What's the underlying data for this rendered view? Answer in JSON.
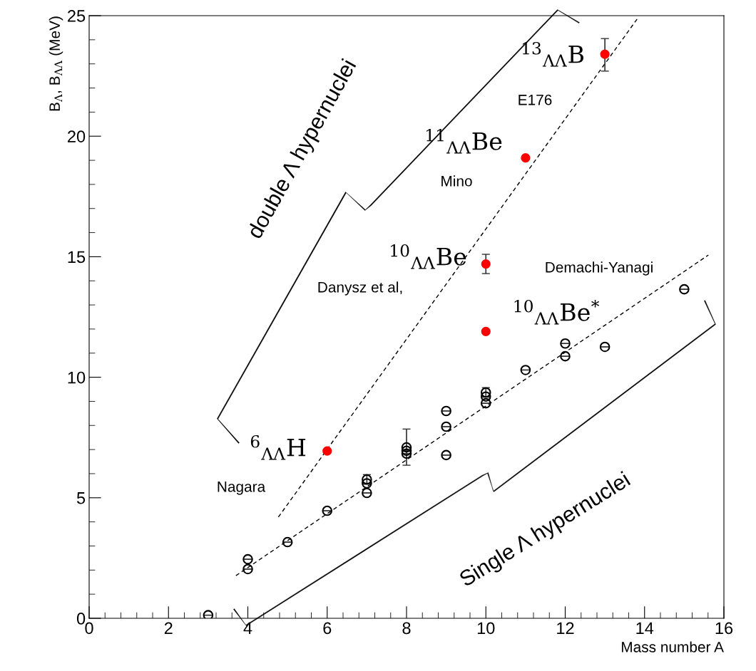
{
  "chart_data": {
    "type": "scatter",
    "xlabel": "Mass number A",
    "ylabel": "B$_{Λ}$, B$_{ΛΛ}$ (MeV)",
    "xlim": [
      0,
      16
    ],
    "xticks": [
      0,
      2,
      4,
      6,
      8,
      10,
      12,
      14,
      16
    ],
    "ylim": [
      0,
      25
    ],
    "yticks": [
      0,
      5,
      10,
      15,
      20,
      25
    ],
    "grid": false,
    "legend": false,
    "series": [
      {
        "type": "scatter",
        "color": "#000000",
        "marker": "circle",
        "x": [
          3,
          4,
          4,
          5,
          6,
          7,
          7,
          7,
          8,
          8,
          8,
          9,
          9,
          9,
          10,
          10,
          10,
          11,
          12,
          12,
          13,
          15
        ],
        "values": [
          0.13,
          2.04,
          2.45,
          3.16,
          4.46,
          5.2,
          5.6,
          5.76,
          6.83,
          6.95,
          7.09,
          6.77,
          7.95,
          8.6,
          8.92,
          9.2,
          9.37,
          10.3,
          10.87,
          11.4,
          11.26,
          13.65
        ],
        "errors": [
          null,
          null,
          null,
          null,
          null,
          null,
          null,
          0.2,
          null,
          null,
          [
            6.35,
            7.85
          ],
          null,
          null,
          null,
          null,
          null,
          0.2,
          null,
          null,
          null,
          null,
          null
        ]
      },
      {
        "type": "scatter",
        "color": "#ff0000",
        "marker": "circle",
        "x": [
          6,
          10,
          10,
          11,
          13
        ],
        "values": [
          6.94,
          11.9,
          14.7,
          19.1,
          23.4
        ],
        "errors": [
          null,
          null,
          0.4,
          null,
          [
            22.7,
            24.05
          ]
        ]
      },
      {
        "type": "line",
        "color": "#000000",
        "line_style": "dashed",
        "x": [
          3.7,
          15.61
        ],
        "values": [
          1.77,
          15.07
        ]
      },
      {
        "type": "line",
        "color": "#000000",
        "line_style": "dashed",
        "x": [
          4.77,
          13.83
        ],
        "values": [
          4.2,
          24.9
        ]
      }
    ],
    "annotations": [
      "$^{13}$$_{ΛΛ}$B",
      "E176",
      "$^{11}$$_{ΛΛ}$Be",
      "Mino",
      "$^{10}$$_{ΛΛ}$Be",
      "Danysz et al,",
      "Demachi-Yanagi",
      "$^{10}$$_{ΛΛ}$Be$^{*}$",
      "$^{6}$$_{ΛΛ}$H",
      "Nagara",
      "double Λ hypernuclei",
      "Single Λ hypernuclei"
    ]
  }
}
